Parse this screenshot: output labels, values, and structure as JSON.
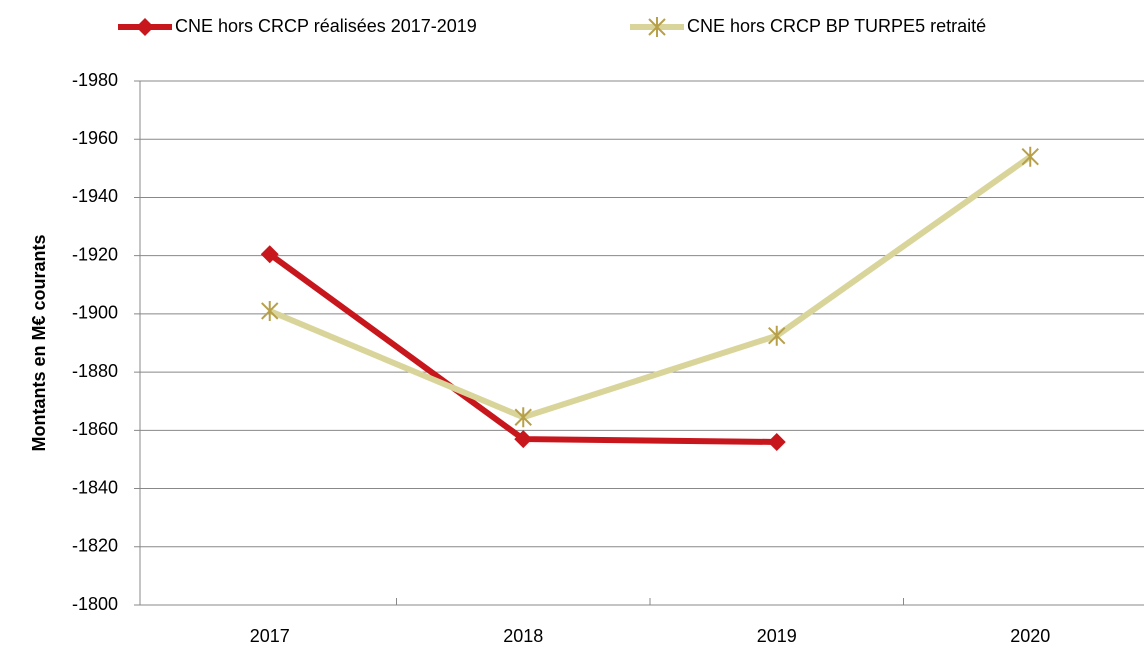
{
  "chart_data": {
    "type": "line",
    "y_label": "Montants en M€ courants",
    "categories": [
      "2017",
      "2018",
      "2019",
      "2020"
    ],
    "series": [
      {
        "name": "CNE hors CRCP réalisées 2017-2019",
        "color": "#c8161d",
        "marker": "diamond",
        "values": [
          -1920.5,
          -1857,
          -1856,
          null
        ]
      },
      {
        "name": "CNE hors CRCP BP TURPE5 retraité",
        "color": "#d9d59a",
        "marker_color": "#b8a04a",
        "marker": "asterisk",
        "values": [
          -1901,
          -1864.5,
          -1892.5,
          -1954
        ]
      }
    ],
    "ylim": [
      -1800,
      -1980
    ],
    "yticks": [
      -1800,
      -1820,
      -1840,
      -1860,
      -1880,
      -1900,
      -1920,
      -1940,
      -1960,
      -1980
    ],
    "grid": true,
    "legend": "top"
  }
}
